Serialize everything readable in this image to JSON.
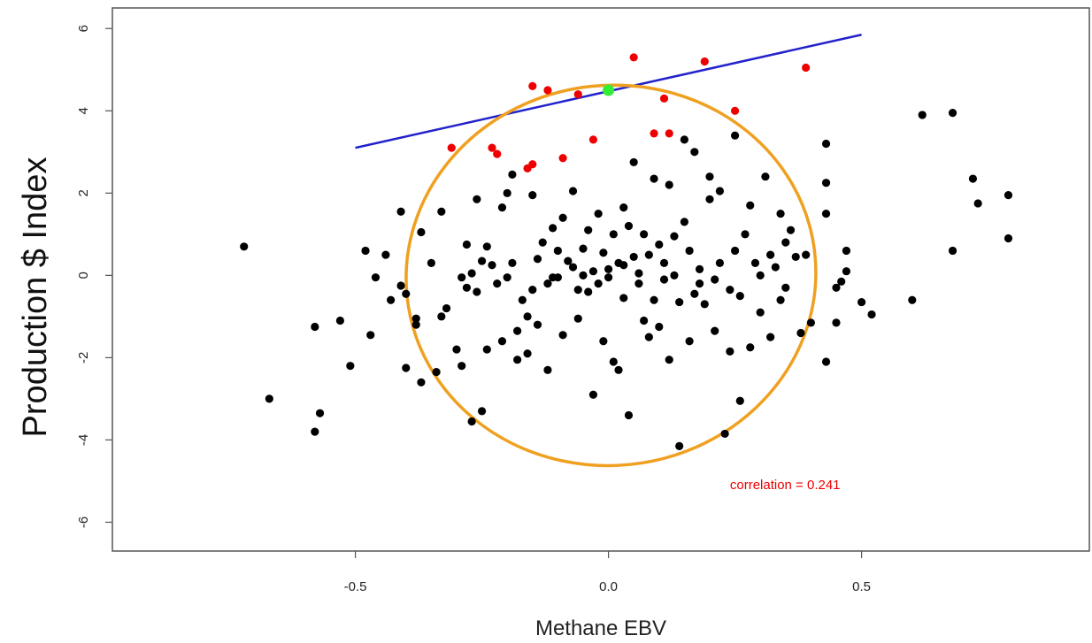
{
  "chart_data": {
    "type": "scatter",
    "xlabel": "Methane EBV",
    "ylabel": "Production $ Index",
    "xlim": [
      -0.98,
      0.95
    ],
    "ylim": [
      -6.7,
      6.5
    ],
    "x_ticks": [
      -0.5,
      0.0,
      0.5
    ],
    "x_tick_labels": [
      "-0.5",
      "0.0",
      "0.5"
    ],
    "y_ticks": [
      -6,
      -4,
      -2,
      0,
      2,
      4,
      6
    ],
    "y_tick_labels": [
      "-6",
      "-4",
      "-2",
      "0",
      "2",
      "4",
      "6"
    ],
    "grid": false,
    "colors": {
      "points": "#000000",
      "selected_points": "#ee0000",
      "highlight_point": "#33ee33",
      "line": "#2222cc",
      "ellipse": "#f0a020",
      "annotation": "#ee0000"
    },
    "annotation": {
      "text": "correlation  =  0.241",
      "x": 0.24,
      "y": -5.2
    },
    "line": {
      "x": [
        -0.5,
        0.5
      ],
      "y": [
        3.1,
        5.85
      ]
    },
    "ellipse": {
      "cx": 0.005,
      "cy": 0.0,
      "rx": 0.405,
      "ry": 4.62,
      "rotation_deg": -6
    },
    "highlight_point": {
      "x": 0.0,
      "y": 4.5
    },
    "series": [
      {
        "values_y_label": "red",
        "points": [
          [
            -0.31,
            3.1
          ],
          [
            -0.23,
            3.1
          ],
          [
            -0.22,
            2.95
          ],
          [
            -0.16,
            2.6
          ],
          [
            -0.15,
            2.7
          ],
          [
            -0.15,
            4.6
          ],
          [
            -0.12,
            4.5
          ],
          [
            -0.09,
            2.85
          ],
          [
            -0.06,
            4.4
          ],
          [
            -0.03,
            3.3
          ],
          [
            0.05,
            5.3
          ],
          [
            0.09,
            3.45
          ],
          [
            0.11,
            4.3
          ],
          [
            0.12,
            3.45
          ],
          [
            0.19,
            5.2
          ],
          [
            0.25,
            4.0
          ],
          [
            0.39,
            5.05
          ]
        ]
      },
      {
        "values_y_label": "black",
        "points": [
          [
            -0.72,
            0.7
          ],
          [
            -0.67,
            -3.0
          ],
          [
            -0.58,
            -1.25
          ],
          [
            -0.58,
            -3.8
          ],
          [
            -0.57,
            -3.35
          ],
          [
            -0.53,
            -1.1
          ],
          [
            -0.51,
            -2.2
          ],
          [
            -0.48,
            0.6
          ],
          [
            -0.47,
            -1.45
          ],
          [
            -0.46,
            -0.05
          ],
          [
            -0.44,
            0.5
          ],
          [
            -0.43,
            -0.6
          ],
          [
            -0.41,
            1.55
          ],
          [
            -0.41,
            -0.25
          ],
          [
            -0.4,
            -0.45
          ],
          [
            -0.4,
            -2.25
          ],
          [
            -0.38,
            -1.05
          ],
          [
            -0.38,
            -1.2
          ],
          [
            -0.37,
            1.05
          ],
          [
            -0.37,
            -2.6
          ],
          [
            -0.35,
            0.3
          ],
          [
            -0.34,
            -2.35
          ],
          [
            -0.33,
            1.55
          ],
          [
            -0.33,
            -1.0
          ],
          [
            -0.32,
            -0.8
          ],
          [
            -0.3,
            -1.8
          ],
          [
            -0.29,
            -2.2
          ],
          [
            -0.29,
            -0.05
          ],
          [
            -0.28,
            0.75
          ],
          [
            -0.28,
            -0.3
          ],
          [
            -0.27,
            -3.55
          ],
          [
            -0.26,
            1.85
          ],
          [
            -0.26,
            -0.4
          ],
          [
            -0.25,
            0.35
          ],
          [
            -0.25,
            -3.3
          ],
          [
            -0.24,
            0.7
          ],
          [
            -0.24,
            -1.8
          ],
          [
            -0.23,
            0.25
          ],
          [
            -0.22,
            -0.2
          ],
          [
            -0.21,
            1.65
          ],
          [
            -0.21,
            -1.6
          ],
          [
            -0.2,
            2.0
          ],
          [
            -0.2,
            -0.05
          ],
          [
            -0.19,
            2.45
          ],
          [
            -0.19,
            0.3
          ],
          [
            -0.18,
            -1.35
          ],
          [
            -0.18,
            -2.05
          ],
          [
            -0.17,
            -0.6
          ],
          [
            -0.16,
            -1.0
          ],
          [
            -0.16,
            -1.9
          ],
          [
            -0.15,
            1.95
          ],
          [
            -0.15,
            -0.35
          ],
          [
            -0.14,
            0.4
          ],
          [
            -0.14,
            -1.2
          ],
          [
            -0.13,
            0.8
          ],
          [
            -0.12,
            -0.2
          ],
          [
            -0.12,
            -2.3
          ],
          [
            -0.11,
            1.15
          ],
          [
            -0.1,
            0.6
          ],
          [
            -0.1,
            -0.05
          ],
          [
            -0.09,
            1.4
          ],
          [
            -0.09,
            -1.45
          ],
          [
            -0.08,
            0.35
          ],
          [
            -0.07,
            2.05
          ],
          [
            -0.07,
            0.2
          ],
          [
            -0.06,
            -0.35
          ],
          [
            -0.06,
            -1.05
          ],
          [
            -0.05,
            0.65
          ],
          [
            -0.05,
            0.0
          ],
          [
            -0.04,
            1.1
          ],
          [
            -0.04,
            -0.4
          ],
          [
            -0.03,
            0.1
          ],
          [
            -0.03,
            -2.9
          ],
          [
            -0.02,
            1.5
          ],
          [
            -0.02,
            -0.2
          ],
          [
            -0.01,
            0.55
          ],
          [
            -0.01,
            -1.6
          ],
          [
            0.0,
            0.15
          ],
          [
            0.0,
            -0.05
          ],
          [
            0.01,
            1.0
          ],
          [
            0.01,
            -2.1
          ],
          [
            0.02,
            0.3
          ],
          [
            0.02,
            -2.3
          ],
          [
            0.03,
            1.65
          ],
          [
            0.03,
            0.25
          ],
          [
            0.03,
            -0.55
          ],
          [
            0.04,
            1.2
          ],
          [
            0.04,
            -3.4
          ],
          [
            0.05,
            2.75
          ],
          [
            0.05,
            0.45
          ],
          [
            0.06,
            -0.2
          ],
          [
            0.07,
            1.0
          ],
          [
            0.07,
            -1.1
          ],
          [
            0.08,
            0.5
          ],
          [
            0.08,
            -1.5
          ],
          [
            0.09,
            2.35
          ],
          [
            0.09,
            -0.6
          ],
          [
            0.1,
            0.75
          ],
          [
            0.1,
            -1.25
          ],
          [
            0.11,
            0.3
          ],
          [
            0.11,
            -0.1
          ],
          [
            0.12,
            2.2
          ],
          [
            0.12,
            -2.05
          ],
          [
            0.13,
            0.95
          ],
          [
            0.13,
            0.0
          ],
          [
            0.14,
            -0.65
          ],
          [
            0.14,
            -4.15
          ],
          [
            0.15,
            3.3
          ],
          [
            0.15,
            1.3
          ],
          [
            0.16,
            0.6
          ],
          [
            0.16,
            -1.6
          ],
          [
            0.17,
            3.0
          ],
          [
            0.17,
            -0.45
          ],
          [
            0.18,
            0.15
          ],
          [
            0.19,
            -0.7
          ],
          [
            0.2,
            2.4
          ],
          [
            0.2,
            1.85
          ],
          [
            0.21,
            -0.1
          ],
          [
            0.21,
            -1.35
          ],
          [
            0.22,
            2.05
          ],
          [
            0.22,
            0.3
          ],
          [
            0.23,
            -3.85
          ],
          [
            0.24,
            -0.35
          ],
          [
            0.24,
            -1.85
          ],
          [
            0.25,
            3.4
          ],
          [
            0.25,
            0.6
          ],
          [
            0.26,
            -0.5
          ],
          [
            0.26,
            -3.05
          ],
          [
            0.27,
            1.0
          ],
          [
            0.28,
            1.7
          ],
          [
            0.28,
            -1.75
          ],
          [
            0.29,
            0.3
          ],
          [
            0.3,
            0.0
          ],
          [
            0.3,
            -0.9
          ],
          [
            0.31,
            2.4
          ],
          [
            0.32,
            0.5
          ],
          [
            0.32,
            -1.5
          ],
          [
            0.33,
            0.2
          ],
          [
            0.34,
            1.5
          ],
          [
            0.34,
            -0.6
          ],
          [
            0.35,
            0.8
          ],
          [
            0.35,
            -0.3
          ],
          [
            0.36,
            1.1
          ],
          [
            0.37,
            0.45
          ],
          [
            0.38,
            -1.4
          ],
          [
            0.39,
            0.5
          ],
          [
            0.4,
            -1.15
          ],
          [
            0.43,
            3.2
          ],
          [
            0.43,
            2.25
          ],
          [
            0.43,
            1.5
          ],
          [
            0.43,
            -2.1
          ],
          [
            0.45,
            -1.15
          ],
          [
            0.46,
            -0.15
          ],
          [
            0.47,
            0.6
          ],
          [
            0.47,
            0.1
          ],
          [
            0.5,
            -0.65
          ],
          [
            0.52,
            -0.95
          ],
          [
            0.6,
            -0.6
          ],
          [
            0.62,
            3.9
          ],
          [
            0.68,
            3.95
          ],
          [
            0.68,
            0.6
          ],
          [
            0.72,
            2.35
          ],
          [
            0.73,
            1.75
          ],
          [
            0.79,
            1.95
          ],
          [
            0.79,
            0.9
          ],
          [
            0.45,
            -0.3
          ],
          [
            -0.11,
            -0.05
          ],
          [
            0.06,
            0.05
          ],
          [
            -0.27,
            0.05
          ],
          [
            0.18,
            -0.2
          ]
        ]
      }
    ]
  }
}
